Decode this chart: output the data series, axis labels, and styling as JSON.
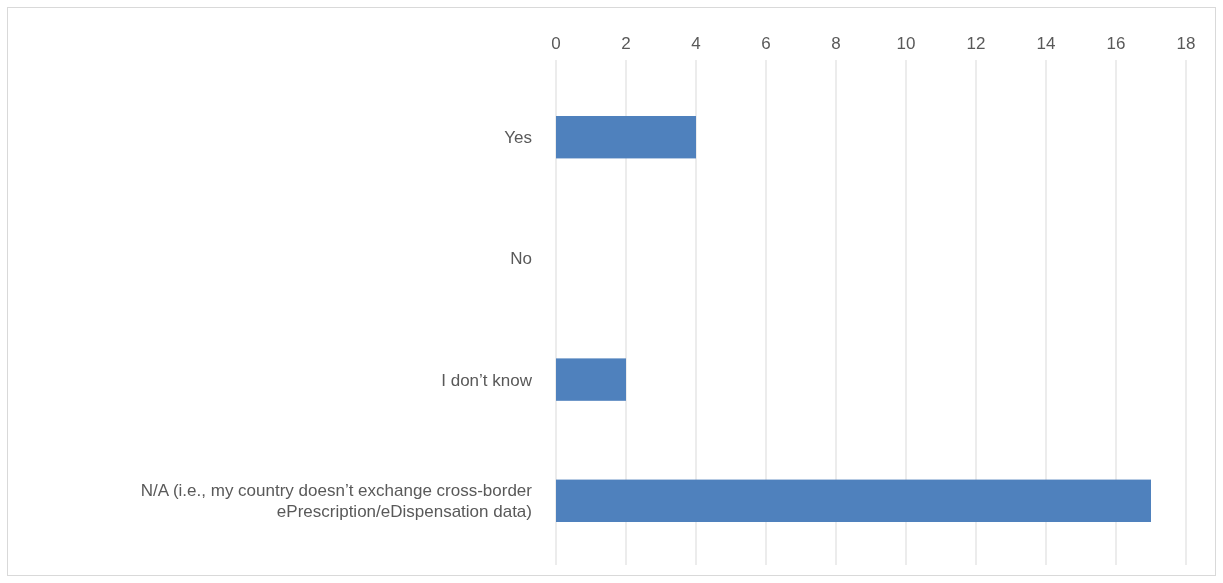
{
  "chart_data": {
    "type": "bar",
    "orientation": "horizontal",
    "categories": [
      "Yes",
      "No",
      "I don’t know",
      "N/A (i.e., my country doesn’t exchange cross-border ePrescription/eDispensation data)"
    ],
    "values": [
      4,
      0,
      2,
      17
    ],
    "color": "#4f81bd",
    "xlim": [
      0,
      18
    ],
    "xticks": [
      0,
      2,
      4,
      6,
      8,
      10,
      12,
      14,
      16,
      18
    ],
    "grid": "x"
  }
}
